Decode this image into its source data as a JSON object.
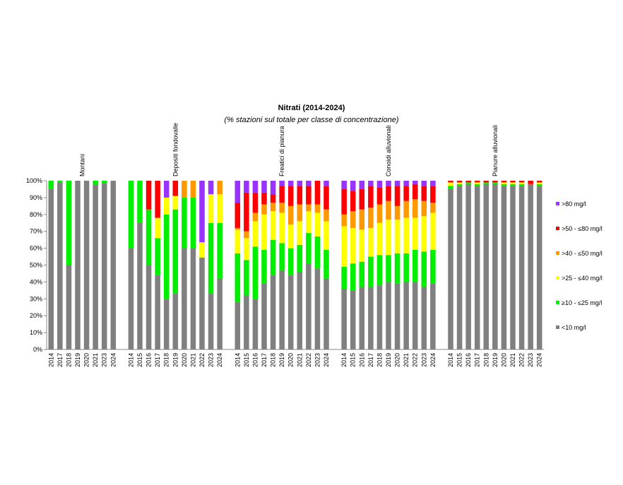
{
  "chart_data": {
    "type": "stacked_bar",
    "title": "Nitrati (2014-2024)",
    "subtitle": "(% stazioni sul totale per classe di concentrazione)",
    "group_labels": [
      "Montani",
      "Depositi fondovalle",
      "Freatici di pianura",
      "Conoidi alluvionali",
      "Pianure alluvionali"
    ],
    "categories": [
      "2014",
      "2017",
      "2018",
      "2019",
      "2020",
      "2021",
      "2023",
      "2024",
      null,
      "2014",
      "2015",
      "2016",
      "2017",
      "2018",
      "2019",
      "2020",
      "2021",
      "2022",
      "2023",
      "2024",
      null,
      "2014",
      "2015",
      "2016",
      "2017",
      "2018",
      "2019",
      "2020",
      "2021",
      "2022",
      "2023",
      "2024",
      null,
      "2014",
      "2015",
      "2016",
      "2017",
      "2018",
      "2019",
      "2020",
      "2021",
      "2022",
      "2023",
      "2024",
      null,
      "2014",
      "2015",
      "2016",
      "2017",
      "2018",
      "2019",
      "2020",
      "2021",
      "2022",
      "2023",
      "2024"
    ],
    "series": [
      {
        "name": "<10 mg/l",
        "color": "#808080",
        "values": [
          95,
          99,
          50,
          100,
          100,
          97.5,
          98.5,
          100,
          null,
          60,
          75,
          50,
          44,
          30,
          33,
          60,
          60,
          54.5,
          33,
          42,
          null,
          28,
          32,
          30,
          39,
          44,
          47,
          44,
          46,
          51,
          48,
          42,
          null,
          36,
          35,
          37,
          37,
          38,
          40,
          39,
          40,
          40,
          37,
          39,
          null,
          95,
          97,
          98,
          97,
          98,
          98,
          97,
          97,
          97,
          98,
          97
        ]
      },
      {
        "name": "≥10 - ≤25 mg/l",
        "color": "#00ee00",
        "values": [
          5,
          1,
          50,
          0,
          0,
          2.5,
          1.5,
          0,
          null,
          40,
          25,
          33,
          22,
          50,
          50,
          30,
          30,
          0,
          42,
          33,
          null,
          29,
          21,
          31,
          20,
          21,
          16,
          16,
          16,
          18,
          19,
          17,
          null,
          13,
          16,
          15,
          18,
          18,
          16,
          18,
          17,
          19,
          21,
          20,
          null,
          2,
          1,
          1,
          1,
          1,
          1,
          1,
          1,
          1,
          0,
          1
        ]
      },
      {
        "name": ">25 - ≤40 mg/l",
        "color": "#ffff00",
        "values": [
          0,
          0,
          0,
          0,
          0,
          0,
          0,
          0,
          null,
          0,
          0,
          0,
          12,
          10,
          8,
          0,
          0,
          9,
          17,
          17,
          null,
          14,
          13,
          15,
          21,
          17,
          18,
          14,
          14,
          13,
          14,
          17,
          null,
          24,
          21,
          19,
          17,
          19,
          21,
          20,
          21,
          19,
          21,
          22,
          null,
          2,
          1,
          0,
          1,
          0,
          0,
          1,
          1,
          1,
          0,
          1
        ]
      },
      {
        "name": ">40 - ≤50 mg/l",
        "color": "#ff9900",
        "values": [
          0,
          0,
          0,
          0,
          0,
          0,
          0,
          0,
          null,
          0,
          0,
          0,
          0,
          0,
          0,
          10,
          10,
          0,
          0,
          8,
          null,
          1,
          4,
          5,
          6,
          5,
          6,
          11,
          10,
          4,
          5,
          7,
          null,
          7,
          10,
          12,
          12,
          11,
          11,
          8,
          10,
          11,
          9,
          6,
          null,
          0,
          0,
          0,
          0,
          0,
          0,
          0,
          0,
          0,
          0,
          0
        ]
      },
      {
        "name": ">50 - ≤80 mg/l",
        "color": "#ff0000",
        "values": [
          0,
          0,
          0,
          0,
          0,
          0,
          0,
          0,
          null,
          0,
          0,
          17,
          22,
          0,
          9,
          0,
          0,
          0,
          0,
          0,
          null,
          15,
          23,
          12,
          7,
          5,
          10,
          12,
          11,
          11,
          14,
          14,
          null,
          15,
          12,
          12,
          13,
          10,
          9,
          12,
          9,
          9,
          9,
          10,
          null,
          1,
          1,
          1,
          1,
          1,
          1,
          1,
          1,
          1,
          2,
          1
        ]
      },
      {
        "name": ">80 mg/l",
        "color": "#9933ff",
        "values": [
          0,
          0,
          0,
          0,
          0,
          0,
          0,
          0,
          null,
          0,
          0,
          0,
          0,
          10,
          0,
          0,
          0,
          36.5,
          8,
          0,
          null,
          13,
          7,
          7,
          7,
          8,
          3,
          3,
          3,
          3,
          0,
          3,
          null,
          5,
          6,
          5,
          3,
          4,
          3,
          3,
          3,
          2,
          3,
          3,
          null,
          0,
          0,
          0,
          0,
          0,
          0,
          0,
          0,
          0,
          0,
          0
        ]
      }
    ],
    "ylim": [
      0,
      100
    ],
    "yticks": [
      {
        "value": 0,
        "label": "0%"
      },
      {
        "value": 10,
        "label": "10%"
      },
      {
        "value": 20,
        "label": "20%"
      },
      {
        "value": 30,
        "label": "30%"
      },
      {
        "value": 40,
        "label": "40%"
      },
      {
        "value": 50,
        "label": "50%"
      },
      {
        "value": 60,
        "label": "60%"
      },
      {
        "value": 70,
        "label": "70%"
      },
      {
        "value": 80,
        "label": "80%"
      },
      {
        "value": 90,
        "label": "90%"
      },
      {
        "value": 100,
        "label": "100%"
      }
    ],
    "grid": false,
    "legend": "right"
  }
}
